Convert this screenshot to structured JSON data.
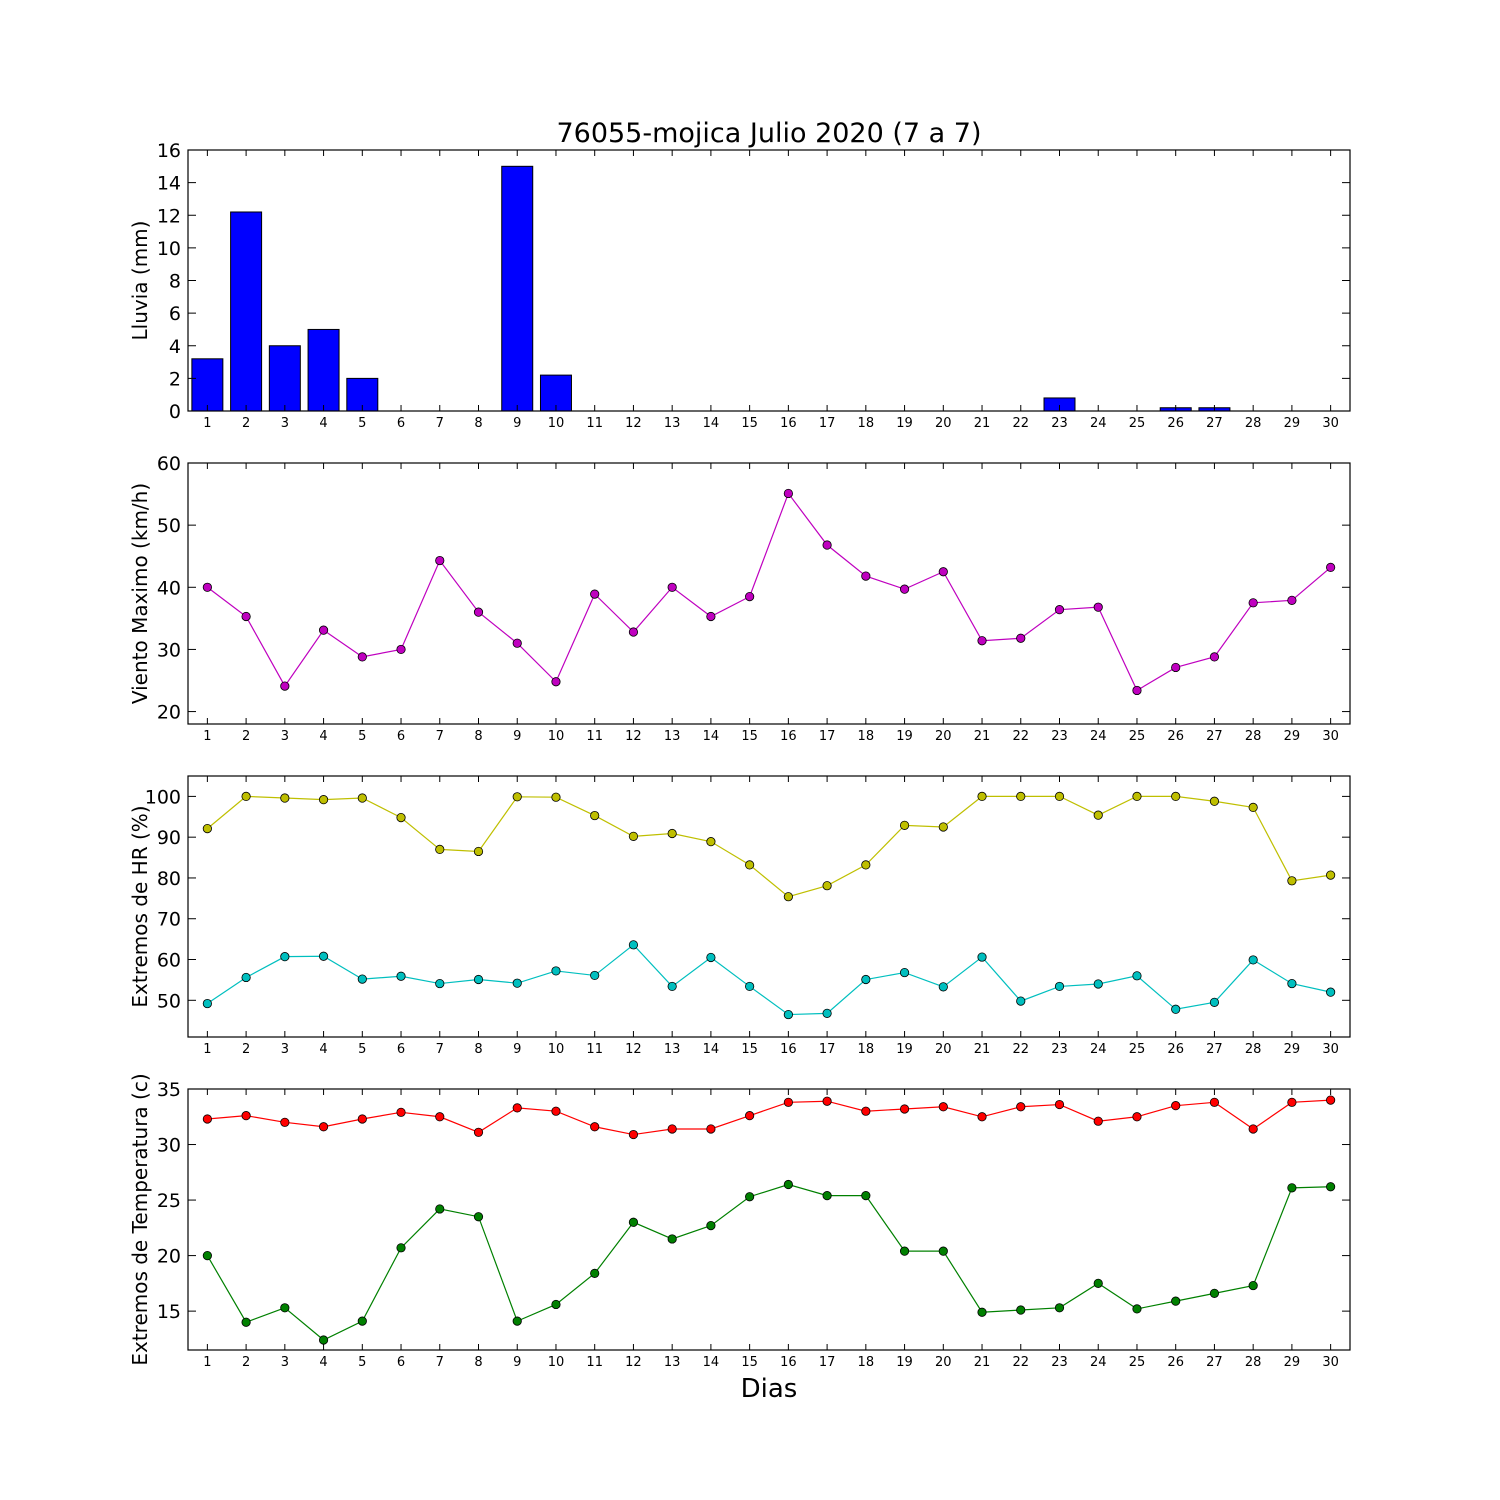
{
  "figure": {
    "title": "76055-mojica Julio 2020  (7 a 7)",
    "xlabel": "Dias"
  },
  "chart_data": [
    {
      "type": "bar",
      "ylabel": "Lluvia (mm)",
      "ylim": [
        0,
        16
      ],
      "yticks": [
        0,
        2,
        4,
        6,
        8,
        10,
        12,
        14,
        16
      ],
      "grid": false,
      "categories": [
        1,
        2,
        3,
        4,
        5,
        6,
        7,
        8,
        9,
        10,
        11,
        12,
        13,
        14,
        15,
        16,
        17,
        18,
        19,
        20,
        21,
        22,
        23,
        24,
        25,
        26,
        27,
        28,
        29,
        30
      ],
      "series": [
        {
          "color": "#0000ff",
          "values": [
            3.2,
            12.2,
            4.0,
            5.0,
            2.0,
            0,
            0,
            0,
            15.0,
            2.2,
            0,
            0,
            0,
            0,
            0,
            0,
            0,
            0,
            0,
            0,
            0,
            0,
            0.8,
            0,
            0,
            0.2,
            0.2,
            0,
            0,
            0
          ]
        }
      ]
    },
    {
      "type": "line",
      "ylabel": "Viento Maximo (km/h)",
      "ylim": [
        18,
        60
      ],
      "yticks": [
        20,
        30,
        40,
        50,
        60
      ],
      "grid": false,
      "x": [
        1,
        2,
        3,
        4,
        5,
        6,
        7,
        8,
        9,
        10,
        11,
        12,
        13,
        14,
        15,
        16,
        17,
        18,
        19,
        20,
        21,
        22,
        23,
        24,
        25,
        26,
        27,
        28,
        29,
        30
      ],
      "series": [
        {
          "color": "#bf00bf",
          "values": [
            40.0,
            35.3,
            24.1,
            33.1,
            28.8,
            30.0,
            44.3,
            36.0,
            31.0,
            24.8,
            38.9,
            32.8,
            40.0,
            35.3,
            38.5,
            55.1,
            46.8,
            41.8,
            39.7,
            42.5,
            31.4,
            31.8,
            36.4,
            36.8,
            23.4,
            27.1,
            28.8,
            37.5,
            37.9,
            43.2
          ]
        }
      ]
    },
    {
      "type": "line",
      "ylabel": "Extremos de HR (%)",
      "ylim": [
        41,
        105
      ],
      "yticks": [
        50,
        60,
        70,
        80,
        90,
        100
      ],
      "grid": false,
      "x": [
        1,
        2,
        3,
        4,
        5,
        6,
        7,
        8,
        9,
        10,
        11,
        12,
        13,
        14,
        15,
        16,
        17,
        18,
        19,
        20,
        21,
        22,
        23,
        24,
        25,
        26,
        27,
        28,
        29,
        30
      ],
      "series": [
        {
          "color": "#bfbf00",
          "values": [
            92.1,
            100.0,
            99.6,
            99.2,
            99.6,
            94.8,
            87.0,
            86.5,
            99.9,
            99.8,
            95.3,
            90.2,
            90.9,
            88.9,
            83.2,
            75.4,
            78.1,
            83.2,
            92.9,
            92.5,
            100.0,
            100.0,
            100.0,
            95.4,
            100.0,
            100.0,
            98.8,
            97.3,
            79.3,
            80.7
          ]
        },
        {
          "color": "#00bfbf",
          "values": [
            49.2,
            55.6,
            60.7,
            60.8,
            55.2,
            55.9,
            54.1,
            55.1,
            54.2,
            57.2,
            56.1,
            63.6,
            53.4,
            60.5,
            53.4,
            46.5,
            46.8,
            55.1,
            56.8,
            53.3,
            60.6,
            49.8,
            53.4,
            54.0,
            56.0,
            47.8,
            49.5,
            59.9,
            54.1,
            52.0
          ]
        }
      ]
    },
    {
      "type": "line",
      "ylabel": "Extremos de Temperatura (c)",
      "ylim": [
        11.5,
        35
      ],
      "yticks": [
        15,
        20,
        25,
        30,
        35
      ],
      "grid": false,
      "x": [
        1,
        2,
        3,
        4,
        5,
        6,
        7,
        8,
        9,
        10,
        11,
        12,
        13,
        14,
        15,
        16,
        17,
        18,
        19,
        20,
        21,
        22,
        23,
        24,
        25,
        26,
        27,
        28,
        29,
        30
      ],
      "series": [
        {
          "color": "#ff0000",
          "values": [
            32.3,
            32.6,
            32.0,
            31.6,
            32.3,
            32.9,
            32.5,
            31.1,
            33.3,
            33.0,
            31.6,
            30.9,
            31.4,
            31.4,
            32.6,
            33.8,
            33.9,
            33.0,
            33.2,
            33.4,
            32.5,
            33.4,
            33.6,
            32.1,
            32.5,
            33.5,
            33.8,
            31.4,
            33.8,
            34.0
          ]
        },
        {
          "color": "#008000",
          "values": [
            20.0,
            14.0,
            15.3,
            12.4,
            14.1,
            20.7,
            24.2,
            23.5,
            14.1,
            15.6,
            18.4,
            23.0,
            21.5,
            22.7,
            25.3,
            26.4,
            25.4,
            25.4,
            20.4,
            20.4,
            14.9,
            15.1,
            15.3,
            17.5,
            15.2,
            15.9,
            16.6,
            17.3,
            26.1,
            26.2
          ]
        }
      ]
    }
  ]
}
